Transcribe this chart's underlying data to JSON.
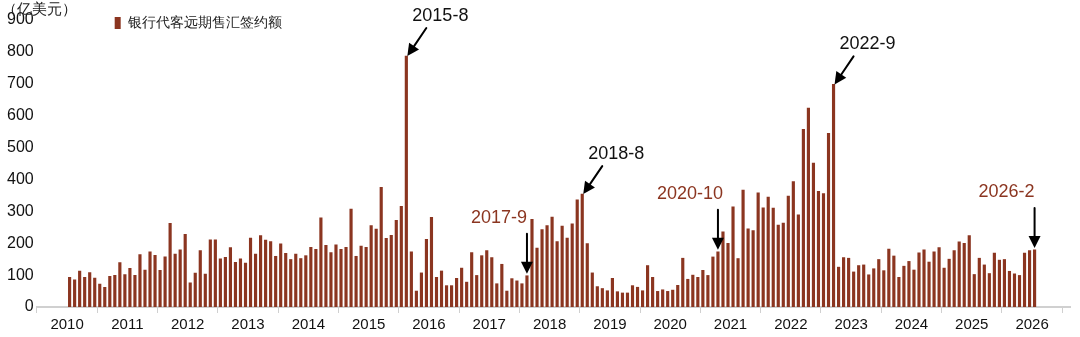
{
  "chart_data": {
    "type": "bar",
    "ylabel": "（亿美元）",
    "x": [
      "2010-01",
      "2010-02",
      "2010-03",
      "2010-04",
      "2010-05",
      "2010-06",
      "2010-07",
      "2010-08",
      "2010-09",
      "2010-10",
      "2010-11",
      "2010-12",
      "2011-01",
      "2011-02",
      "2011-03",
      "2011-04",
      "2011-05",
      "2011-06",
      "2011-07",
      "2011-08",
      "2011-09",
      "2011-10",
      "2011-11",
      "2011-12",
      "2012-01",
      "2012-02",
      "2012-03",
      "2012-04",
      "2012-05",
      "2012-06",
      "2012-07",
      "2012-08",
      "2012-09",
      "2012-10",
      "2012-11",
      "2012-12",
      "2013-01",
      "2013-02",
      "2013-03",
      "2013-04",
      "2013-05",
      "2013-06",
      "2013-07",
      "2013-08",
      "2013-09",
      "2013-10",
      "2013-11",
      "2013-12",
      "2014-01",
      "2014-02",
      "2014-03",
      "2014-04",
      "2014-05",
      "2014-06",
      "2014-07",
      "2014-08",
      "2014-09",
      "2014-10",
      "2014-11",
      "2014-12",
      "2015-01",
      "2015-02",
      "2015-03",
      "2015-04",
      "2015-05",
      "2015-06",
      "2015-07",
      "2015-08",
      "2015-09",
      "2015-10",
      "2015-11",
      "2015-12",
      "2016-01",
      "2016-02",
      "2016-03",
      "2016-04",
      "2016-05",
      "2016-06",
      "2016-07",
      "2016-08",
      "2016-09",
      "2016-10",
      "2016-11",
      "2016-12",
      "2017-01",
      "2017-02",
      "2017-03",
      "2017-04",
      "2017-05",
      "2017-06",
      "2017-07",
      "2017-08",
      "2017-09",
      "2017-10",
      "2017-11",
      "2017-12",
      "2018-01",
      "2018-02",
      "2018-03",
      "2018-04",
      "2018-05",
      "2018-06",
      "2018-07",
      "2018-08",
      "2018-09",
      "2018-10",
      "2018-11",
      "2018-12",
      "2019-01",
      "2019-02",
      "2019-03",
      "2019-04",
      "2019-05",
      "2019-06",
      "2019-07",
      "2019-08",
      "2019-09",
      "2019-10",
      "2019-11",
      "2019-12",
      "2020-01",
      "2020-02",
      "2020-03",
      "2020-04",
      "2020-05",
      "2020-06",
      "2020-07",
      "2020-08",
      "2020-09",
      "2020-10",
      "2020-11",
      "2020-12",
      "2021-01",
      "2021-02",
      "2021-03",
      "2021-04",
      "2021-05",
      "2021-06",
      "2021-07",
      "2021-08",
      "2021-09",
      "2021-10",
      "2021-11",
      "2021-12",
      "2022-01",
      "2022-02",
      "2022-03",
      "2022-04",
      "2022-05",
      "2022-06",
      "2022-07",
      "2022-08",
      "2022-09",
      "2022-10",
      "2022-11",
      "2022-12",
      "2023-01",
      "2023-02",
      "2023-03",
      "2023-04",
      "2023-05",
      "2023-06",
      "2023-07",
      "2023-08",
      "2023-09",
      "2023-10",
      "2023-11",
      "2023-12",
      "2024-01",
      "2024-02",
      "2024-03",
      "2024-04",
      "2024-05",
      "2024-06",
      "2024-07",
      "2024-08",
      "2024-09",
      "2024-10",
      "2024-11",
      "2024-12",
      "2025-01",
      "2025-02",
      "2025-03",
      "2025-04",
      "2025-05",
      "2025-06",
      "2025-07",
      "2025-08",
      "2025-09",
      "2025-10",
      "2025-11",
      "2025-12",
      "2026-01"
    ],
    "series": [
      {
        "name": "银行代客远期售汇签约额",
        "color": "#8b3520",
        "values": [
          93,
          85,
          113,
          93,
          108,
          91,
          72,
          62,
          96,
          99,
          139,
          102,
          121,
          99,
          164,
          116,
          173,
          162,
          115,
          157,
          262,
          166,
          179,
          228,
          76,
          106,
          177,
          103,
          211,
          211,
          151,
          156,
          186,
          140,
          151,
          138,
          216,
          166,
          224,
          210,
          205,
          159,
          198,
          168,
          149,
          166,
          152,
          161,
          187,
          181,
          280,
          193,
          171,
          195,
          181,
          187,
          307,
          159,
          191,
          187,
          255,
          244,
          375,
          215,
          225,
          272,
          316,
          787,
          173,
          50,
          107,
          212,
          281,
          93,
          113,
          67,
          67,
          90,
          122,
          78,
          171,
          99,
          161,
          177,
          155,
          73,
          134,
          50,
          89,
          82,
          73,
          98,
          275,
          185,
          243,
          255,
          282,
          205,
          254,
          216,
          261,
          336,
          354,
          199,
          107,
          64,
          58,
          51,
          90,
          48,
          44,
          44,
          67,
          62,
          51,
          130,
          93,
          49,
          54,
          49,
          53,
          68,
          153,
          87,
          100,
          93,
          115,
          99,
          157,
          173,
          236,
          200,
          314,
          152,
          367,
          245,
          240,
          358,
          311,
          345,
          310,
          257,
          263,
          348,
          393,
          289,
          557,
          624,
          451,
          363,
          356,
          545,
          698,
          125,
          155,
          153,
          110,
          130,
          132,
          101,
          120,
          149,
          114,
          182,
          160,
          93,
          128,
          143,
          116,
          170,
          179,
          141,
          173,
          186,
          122,
          150,
          177,
          204,
          200,
          224,
          102,
          153,
          132,
          105,
          169,
          147,
          149,
          112,
          104,
          99,
          169,
          177,
          179
        ]
      }
    ],
    "xlim": [
      "2010",
      "2026-02"
    ],
    "xticks": [
      {
        "value": "2010",
        "label": "2010"
      },
      {
        "value": "2011",
        "label": "2011"
      },
      {
        "value": "2012",
        "label": "2012"
      },
      {
        "value": "2013",
        "label": "2013"
      },
      {
        "value": "2014",
        "label": "2014"
      },
      {
        "value": "2015",
        "label": "2015"
      },
      {
        "value": "2016",
        "label": "2016"
      },
      {
        "value": "2017",
        "label": "2017"
      },
      {
        "value": "2018",
        "label": "2018"
      },
      {
        "value": "2019",
        "label": "2019"
      },
      {
        "value": "2020",
        "label": "2020"
      },
      {
        "value": "2021",
        "label": "2021"
      },
      {
        "value": "2022",
        "label": "2022"
      },
      {
        "value": "2023",
        "label": "2023"
      },
      {
        "value": "2024",
        "label": "2024"
      },
      {
        "value": "2025",
        "label": "2025"
      },
      {
        "value": "2026",
        "label": "2026"
      }
    ],
    "ylim": [
      0,
      900
    ],
    "yticks": [
      0,
      100,
      200,
      300,
      400,
      500,
      600,
      700,
      800,
      900
    ],
    "grid": false,
    "legend": "top left",
    "annotations": [
      {
        "text": "2015-8",
        "x": "2015-08",
        "y": 787
      },
      {
        "text": "2017-9",
        "x": "2017-08",
        "y": 98
      },
      {
        "text": "2018-8",
        "x": "2018-07",
        "y": 354
      },
      {
        "text": "2020-10",
        "x": "2020-10",
        "y": 173
      },
      {
        "text": "2022-9",
        "x": "2022-09",
        "y": 698
      },
      {
        "text": "2026-2",
        "x": "2026-01",
        "y": 179
      }
    ]
  }
}
